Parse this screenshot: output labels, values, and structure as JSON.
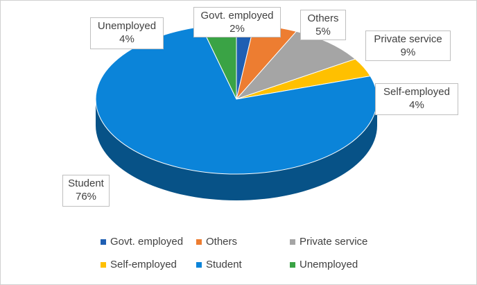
{
  "chart_data": {
    "type": "pie",
    "variant": "3d",
    "title": "",
    "slices": [
      {
        "label": "Govt. employed",
        "value": 2,
        "display": "2%",
        "color": "#1f5fb3"
      },
      {
        "label": "Others",
        "value": 5,
        "display": "5%",
        "color": "#ed7d31"
      },
      {
        "label": "Private service",
        "value": 9,
        "display": "9%",
        "color": "#a5a5a5"
      },
      {
        "label": "Self-employed",
        "value": 4,
        "display": "4%",
        "color": "#ffc000"
      },
      {
        "label": "Student",
        "value": 76,
        "display": "76%",
        "color": "#0b84d9"
      },
      {
        "label": "Unemployed",
        "value": 4,
        "display": "4%",
        "color": "#3aa345"
      }
    ],
    "legend": {
      "position": "bottom",
      "entries": [
        "Govt. employed",
        "Others",
        "Private service",
        "Self-employed",
        "Student",
        "Unemployed"
      ]
    }
  }
}
